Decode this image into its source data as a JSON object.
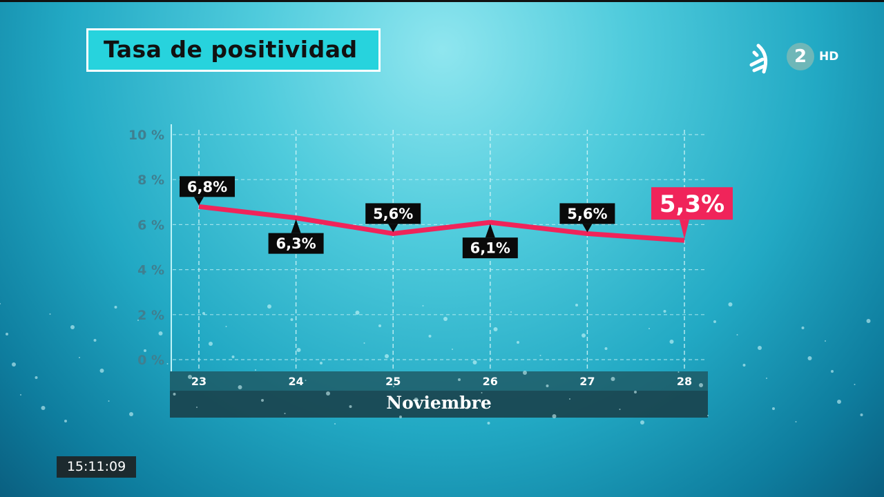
{
  "header": {
    "title": "Tasa de positividad"
  },
  "logo": {
    "channel": "2",
    "quality": "HD"
  },
  "clock": "15:11:09",
  "colors": {
    "line": "#f0245a",
    "highlight": "#f0245a",
    "label_bg": "#0a0a0a"
  },
  "chart_data": {
    "type": "line",
    "title": "Tasa de positividad",
    "xlabel": "Noviembre",
    "ylabel": "",
    "x": [
      "23",
      "24",
      "25",
      "26",
      "27",
      "28"
    ],
    "y_ticks": [
      "0 %",
      "2 %",
      "4 %",
      "6 %",
      "8 %",
      "10 %"
    ],
    "ylim": [
      0,
      10
    ],
    "grid": true,
    "series": [
      {
        "name": "Tasa de positividad",
        "values": [
          6.8,
          6.3,
          5.6,
          6.1,
          5.6,
          5.3
        ],
        "labels": [
          "6,8%",
          "6,3%",
          "5,6%",
          "6,1%",
          "5,6%",
          "5,3%"
        ]
      }
    ]
  }
}
